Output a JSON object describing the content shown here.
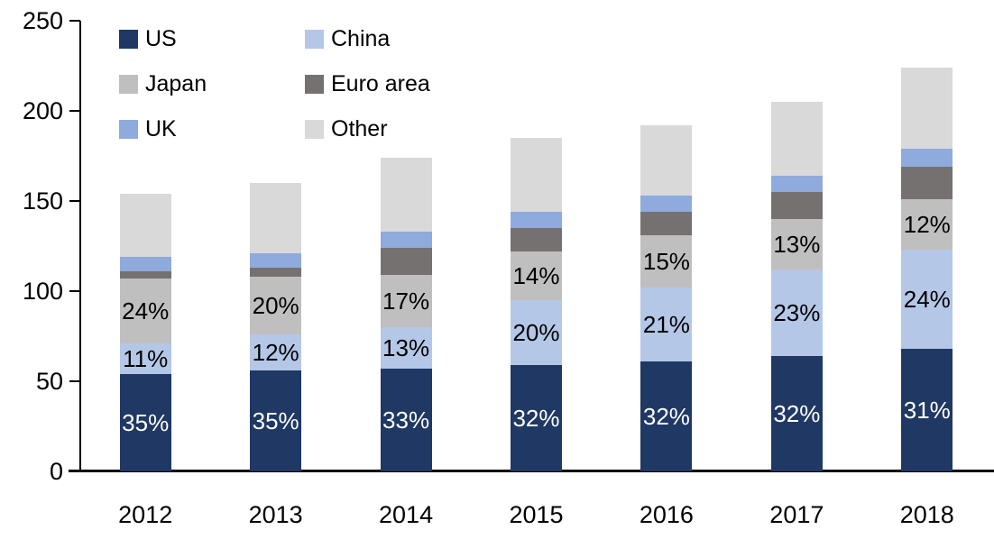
{
  "chart_data": {
    "type": "bar",
    "stacked": true,
    "title": "",
    "xlabel": "",
    "ylabel": "",
    "categories": [
      "2012",
      "2013",
      "2014",
      "2015",
      "2016",
      "2017",
      "2018"
    ],
    "series": [
      {
        "name": "US",
        "color": "#1f3864",
        "values": [
          54,
          56,
          57,
          59,
          61,
          64,
          68
        ],
        "labels": [
          "35%",
          "35%",
          "33%",
          "32%",
          "32%",
          "32%",
          "31%"
        ],
        "label_color": "#ffffff"
      },
      {
        "name": "China",
        "color": "#b4c7e7",
        "values": [
          17,
          20,
          23,
          36,
          41,
          48,
          55
        ],
        "labels": [
          "11%",
          "12%",
          "13%",
          "20%",
          "21%",
          "23%",
          "24%"
        ],
        "label_color": "#000000"
      },
      {
        "name": "Japan",
        "color": "#bfbfbf",
        "values": [
          36,
          32,
          29,
          27,
          29,
          28,
          28
        ],
        "labels": [
          "24%",
          "20%",
          "17%",
          "14%",
          "15%",
          "13%",
          "12%"
        ],
        "label_color": "#000000"
      },
      {
        "name": "Euro area",
        "color": "#767171",
        "values": [
          4,
          5,
          15,
          13,
          13,
          15,
          18
        ],
        "labels": null,
        "label_color": null
      },
      {
        "name": "UK",
        "color": "#8faadc",
        "values": [
          8,
          8,
          9,
          9,
          9,
          9,
          10
        ],
        "labels": null,
        "label_color": null
      },
      {
        "name": "Other",
        "color": "#d9d9d9",
        "values": [
          35,
          39,
          41,
          41,
          39,
          41,
          45
        ],
        "labels": null,
        "label_color": null
      }
    ],
    "totals": [
      154,
      160,
      174,
      185,
      192,
      205,
      224
    ],
    "ylim": [
      0,
      250
    ],
    "y_ticks": [
      0,
      50,
      100,
      150,
      200,
      250
    ],
    "grid": false,
    "legend_position": "top-left",
    "background": "#ffffff",
    "axis_color": "#000000"
  },
  "legend": {
    "items": [
      {
        "label": "US",
        "color": "#1f3864"
      },
      {
        "label": "China",
        "color": "#b4c7e7"
      },
      {
        "label": "Japan",
        "color": "#bfbfbf"
      },
      {
        "label": "Euro area",
        "color": "#767171"
      },
      {
        "label": "UK",
        "color": "#8faadc"
      },
      {
        "label": "Other",
        "color": "#d9d9d9"
      }
    ]
  }
}
